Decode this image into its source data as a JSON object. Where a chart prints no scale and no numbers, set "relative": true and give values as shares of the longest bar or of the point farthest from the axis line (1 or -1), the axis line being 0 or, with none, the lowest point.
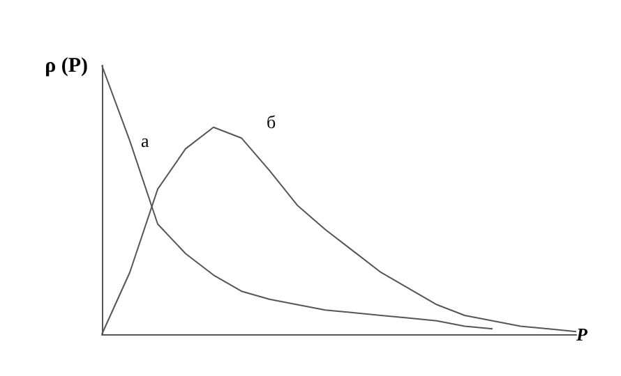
{
  "chart_data": {
    "type": "line",
    "relative": true,
    "xlabel": "P",
    "ylabel": "ρ (P)",
    "categories": [
      null,
      null,
      null,
      null,
      null,
      null,
      null,
      null,
      null,
      null,
      null,
      null,
      null,
      null,
      null,
      null,
      null,
      null
    ],
    "series": [
      {
        "name": "а",
        "color": "#555555",
        "values": [
          1.0,
          0.72,
          0.41,
          0.3,
          0.22,
          0.16,
          0.13,
          0.11,
          0.09,
          0.08,
          0.07,
          0.06,
          0.05,
          0.03,
          0.02,
          null,
          null,
          null
        ]
      },
      {
        "name": "б",
        "color": "#555555",
        "values": [
          0,
          0.23,
          0.54,
          0.69,
          0.77,
          0.73,
          0.61,
          0.48,
          0.39,
          0.31,
          0.23,
          0.17,
          0.11,
          0.07,
          0.05,
          0.03,
          0.02,
          0.01
        ]
      }
    ],
    "grid": false,
    "legend": false,
    "marker": "none",
    "line_style": "solid"
  }
}
